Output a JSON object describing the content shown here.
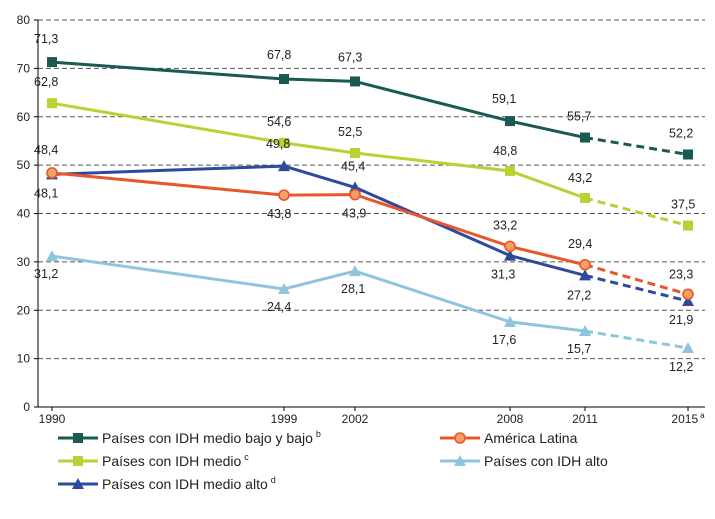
{
  "chart_data": {
    "type": "line",
    "x": [
      "1990",
      "1999",
      "2002",
      "2008",
      "2011",
      "2015"
    ],
    "x_superscripts": [
      "",
      "",
      "",
      "",
      "",
      "a"
    ],
    "ylim": [
      0,
      80
    ],
    "yticks": [
      "0",
      "10",
      "20",
      "30",
      "40",
      "50",
      "60",
      "70",
      "80"
    ],
    "grid": true,
    "legend_position": "bottom",
    "series": [
      {
        "name": "Países con IDH medio bajo y bajo",
        "superscript": "b",
        "color": "#1a5a52",
        "marker": "square",
        "values": [
          71.3,
          67.8,
          67.3,
          59.1,
          55.7,
          52.2
        ],
        "labels": [
          "71,3",
          "67,8",
          "67,3",
          "59,1",
          "55,7",
          "52,2"
        ],
        "dashed_from_index": 4
      },
      {
        "name": "Países con IDH medio",
        "superscript": "c",
        "color": "#b5d334",
        "marker": "square",
        "values": [
          62.8,
          54.6,
          52.5,
          48.8,
          43.2,
          37.5
        ],
        "labels": [
          "62,8",
          "54,6",
          "52,5",
          "48,8",
          "43,2",
          "37,5"
        ],
        "dashed_from_index": 4
      },
      {
        "name": "Países con IDH medio alto",
        "superscript": "d",
        "color": "#2e4a9c",
        "marker": "triangle",
        "values": [
          48.1,
          49.8,
          45.4,
          31.3,
          27.2,
          21.9
        ],
        "labels": [
          "48,1",
          "49,8",
          "45,4",
          "31,3",
          "27,2",
          "21,9"
        ],
        "dashed_from_index": 4
      },
      {
        "name": "América Latina",
        "superscript": "",
        "color": "#e8562a",
        "marker": "circle",
        "values": [
          48.4,
          43.8,
          43.9,
          33.2,
          29.4,
          23.3
        ],
        "labels": [
          "48,4",
          "43,8",
          "43,9",
          "33,2",
          "29,4",
          "23,3"
        ],
        "dashed_from_index": 4
      },
      {
        "name": "Países con IDH alto",
        "superscript": "",
        "color": "#8ec5dd",
        "marker": "triangle",
        "values": [
          31.2,
          24.4,
          28.1,
          17.6,
          15.7,
          12.2
        ],
        "labels": [
          "31,2",
          "24,4",
          "28,1",
          "17,6",
          "15,7",
          "12,2"
        ],
        "dashed_from_index": 4
      }
    ]
  }
}
